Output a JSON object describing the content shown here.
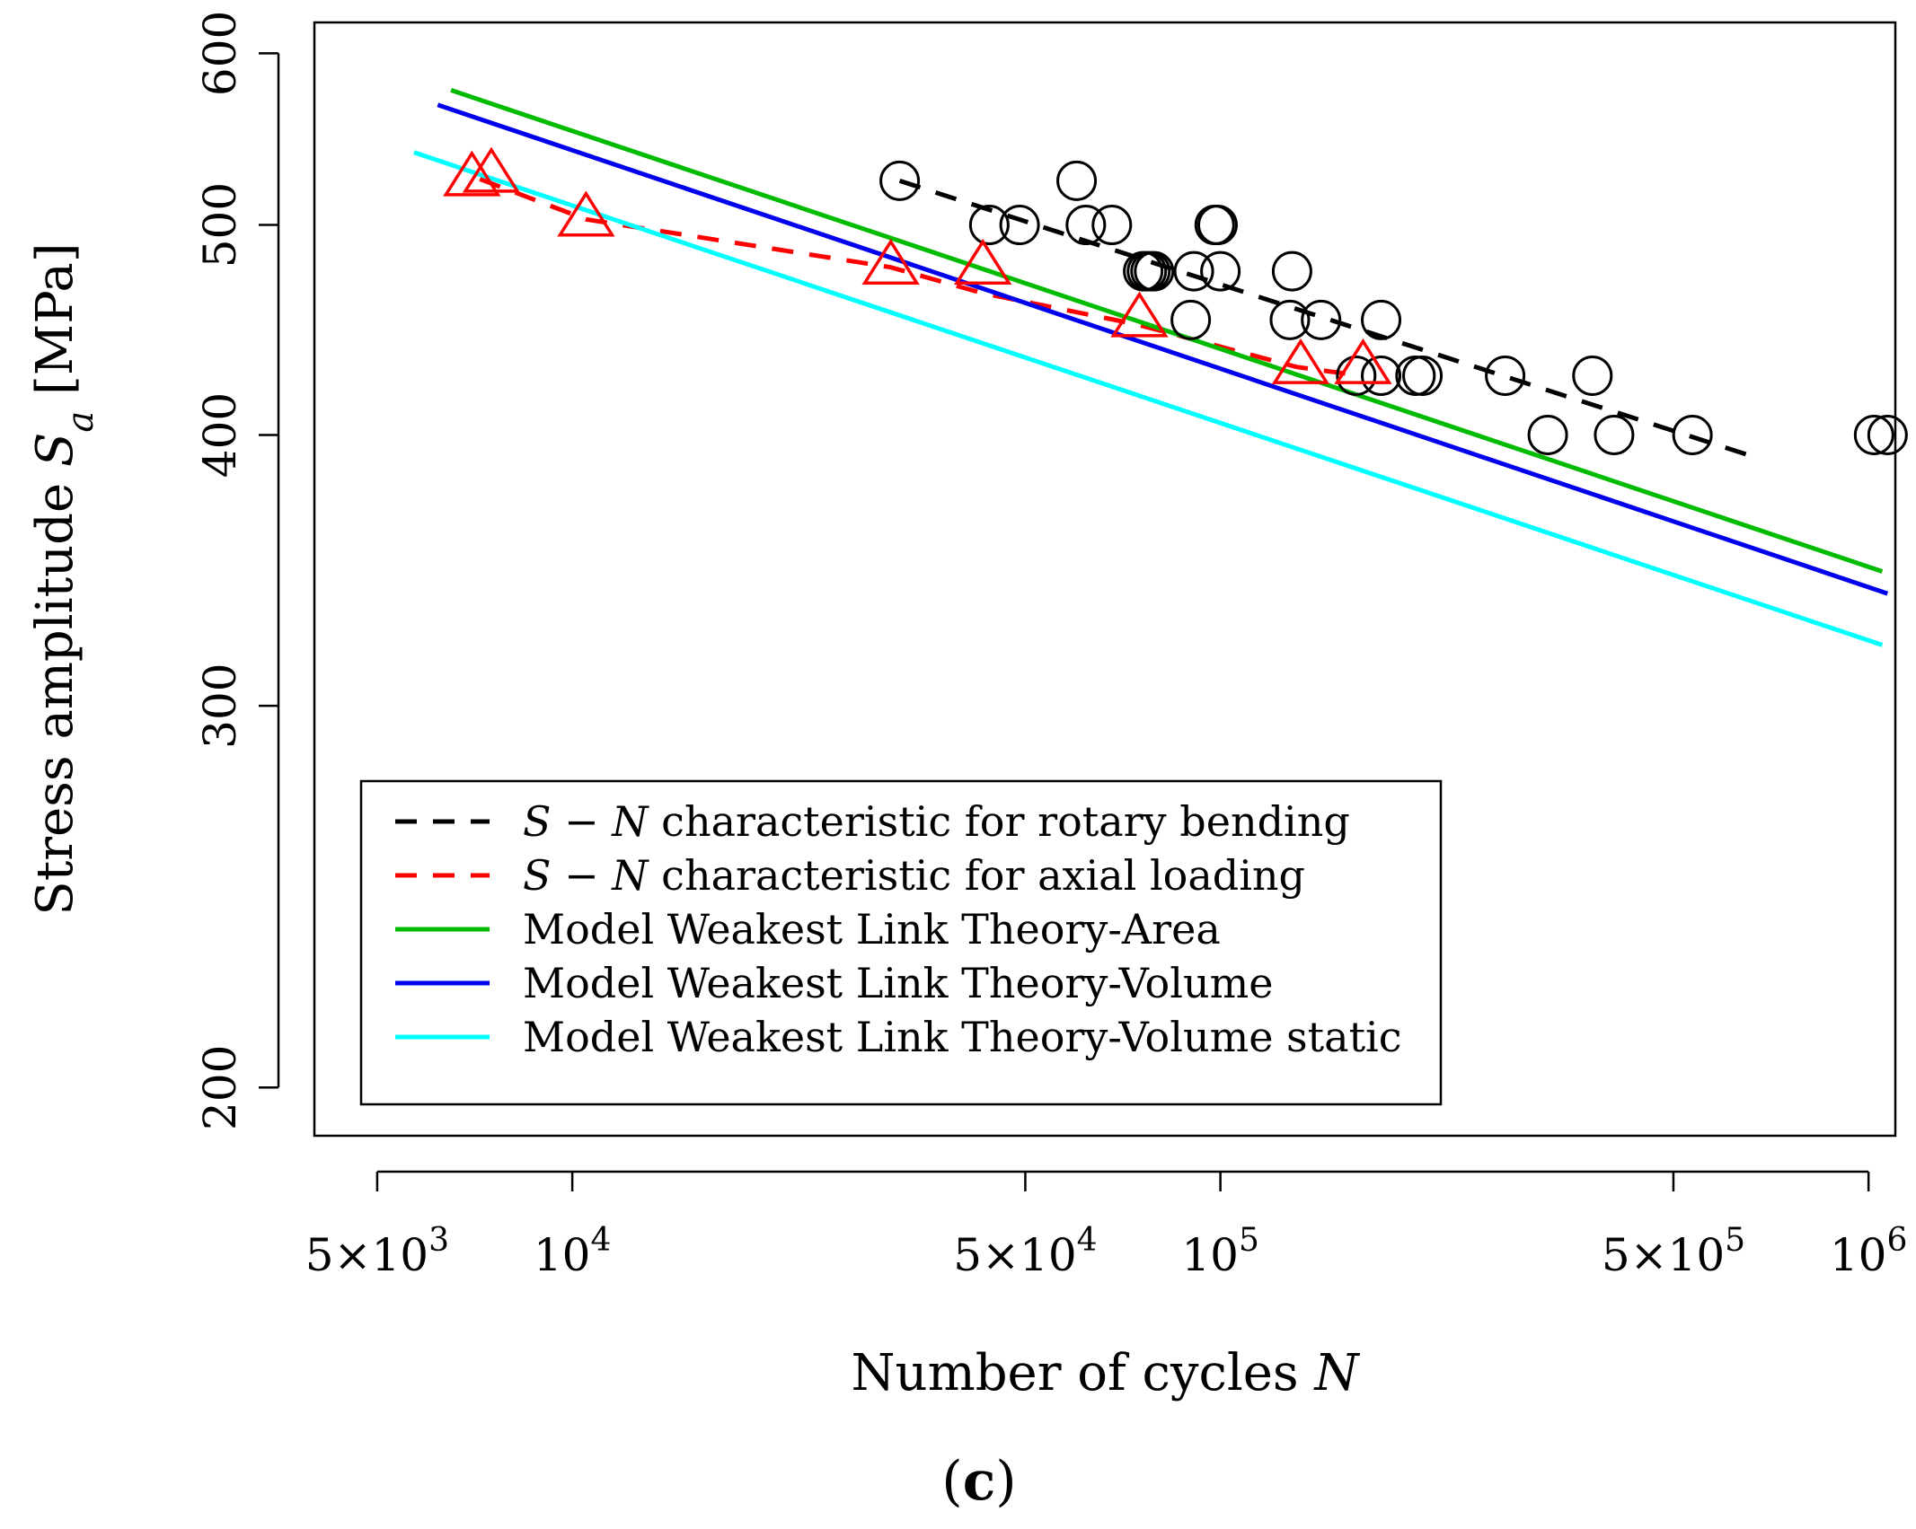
{
  "chart_data": {
    "type": "scatter",
    "x_scale": "log",
    "y_scale": "log",
    "xlim": [
      4000,
      1100000
    ],
    "ylim": [
      190,
      620
    ],
    "xlabel": "Number of cycles",
    "xlabel_var": "N",
    "ylabel": "Stress amplitude",
    "ylabel_var": "S",
    "ylabel_sub": "a",
    "ylabel_unit": "[MPa]",
    "panel_label": "c",
    "x_ticks": [
      {
        "value": 5000,
        "mantissa": "5×10",
        "exp": "3"
      },
      {
        "value": 10000,
        "mantissa": "10",
        "exp": "4"
      },
      {
        "value": 50000,
        "mantissa": "5×10",
        "exp": "4"
      },
      {
        "value": 100000,
        "mantissa": "10",
        "exp": "5"
      },
      {
        "value": 500000,
        "mantissa": "5×10",
        "exp": "5"
      },
      {
        "value": 1000000,
        "mantissa": "10",
        "exp": "6"
      }
    ],
    "y_ticks": [
      {
        "value": 200,
        "label": "200"
      },
      {
        "value": 300,
        "label": "300"
      },
      {
        "value": 400,
        "label": "400"
      },
      {
        "value": 500,
        "label": "500"
      },
      {
        "value": 600,
        "label": "600"
      }
    ],
    "series": [
      {
        "name": "S − N characteristic for rotary bending",
        "kind": "line",
        "dash": true,
        "color": "#000000",
        "points": [
          [
            32000,
            524
          ],
          [
            680000,
            390
          ]
        ]
      },
      {
        "name": "S − N characteristic for axial loading",
        "kind": "line",
        "dash": true,
        "color": "#ff0000",
        "points": [
          [
            7200,
            525
          ],
          [
            10500,
            503
          ],
          [
            31000,
            478
          ],
          [
            43000,
            465
          ],
          [
            74000,
            450
          ],
          [
            131000,
            430
          ],
          [
            165000,
            426
          ]
        ]
      },
      {
        "name": "Model Weakest Link Theory-Area",
        "kind": "line",
        "dash": false,
        "color": "#00bb00",
        "points": [
          [
            6500,
            577
          ],
          [
            1050000,
            346
          ]
        ]
      },
      {
        "name": "Model Weakest Link Theory-Volume",
        "kind": "line",
        "dash": false,
        "color": "#0000ee",
        "points": [
          [
            6200,
            568
          ],
          [
            1070000,
            338
          ]
        ]
      },
      {
        "name": "Model Weakest Link Theory-Volume static",
        "kind": "line",
        "dash": false,
        "color": "#00ffff",
        "points": [
          [
            5700,
            540
          ],
          [
            1050000,
            320
          ]
        ]
      },
      {
        "name": "rotary bending data",
        "kind": "marker",
        "marker": "circle",
        "color": "#000000",
        "points": [
          [
            32000,
            524
          ],
          [
            44000,
            500
          ],
          [
            49000,
            500
          ],
          [
            60000,
            524
          ],
          [
            62000,
            500
          ],
          [
            68000,
            500
          ],
          [
            76000,
            476
          ],
          [
            77000,
            476
          ],
          [
            78000,
            476
          ],
          [
            79000,
            476
          ],
          [
            90000,
            452
          ],
          [
            91000,
            476
          ],
          [
            98000,
            500
          ],
          [
            99000,
            500
          ],
          [
            100000,
            476
          ],
          [
            129000,
            476
          ],
          [
            128000,
            452
          ],
          [
            143000,
            452
          ],
          [
            162000,
            426
          ],
          [
            177000,
            426
          ],
          [
            177000,
            452
          ],
          [
            200000,
            426
          ],
          [
            205000,
            426
          ],
          [
            275000,
            426
          ],
          [
            320000,
            400
          ],
          [
            375000,
            426
          ],
          [
            405000,
            400
          ],
          [
            535000,
            400
          ],
          [
            1020000,
            400
          ],
          [
            1070000,
            400
          ]
        ]
      },
      {
        "name": "axial loading data",
        "kind": "marker",
        "marker": "triangle",
        "color": "#ff0000",
        "points": [
          [
            7000,
            525
          ],
          [
            7500,
            527
          ],
          [
            10500,
            503
          ],
          [
            31000,
            478
          ],
          [
            43000,
            478
          ],
          [
            75000,
            452
          ],
          [
            133000,
            430
          ],
          [
            166000,
            430
          ]
        ]
      }
    ],
    "legend": {
      "position": "bottom-left",
      "entries": [
        {
          "var": "S − N",
          "text": " characteristic for rotary bending",
          "color": "#000000",
          "dash": true
        },
        {
          "var": "S − N",
          "text": " characteristic for axial loading",
          "color": "#ff0000",
          "dash": true
        },
        {
          "var": "",
          "text": "Model Weakest Link Theory-Area",
          "color": "#00bb00",
          "dash": false
        },
        {
          "var": "",
          "text": "Model Weakest Link Theory-Volume",
          "color": "#0000ee",
          "dash": false
        },
        {
          "var": "",
          "text": "Model Weakest Link Theory-Volume static",
          "color": "#00ffff",
          "dash": false
        }
      ]
    }
  }
}
